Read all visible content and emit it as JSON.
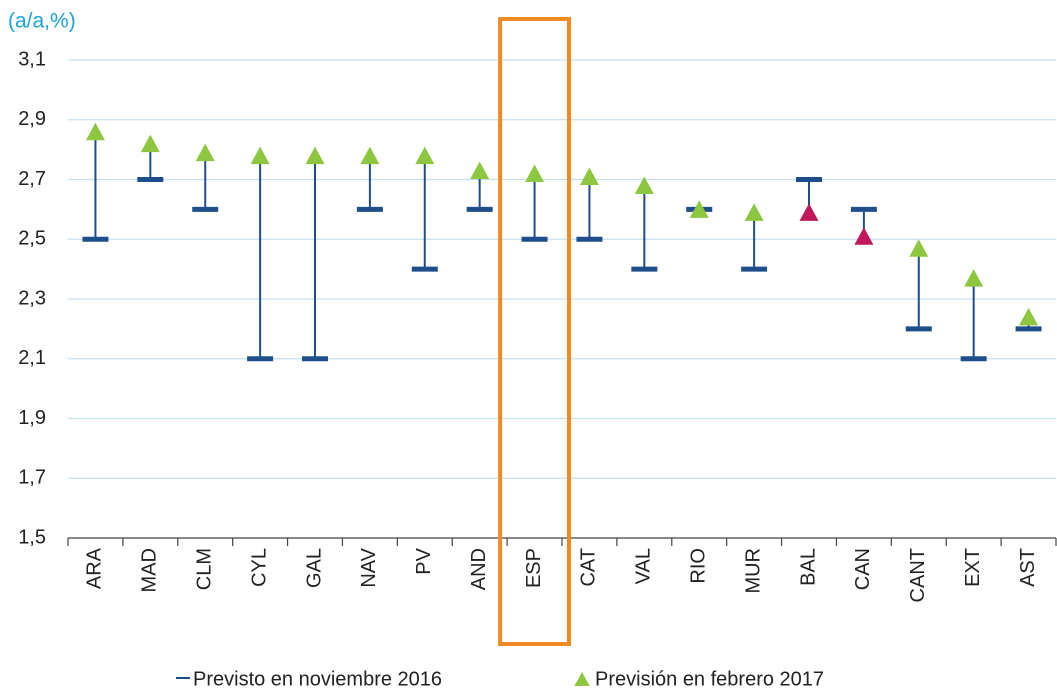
{
  "chart_data": {
    "type": "dumbbell",
    "y_axis_label": "(a/a,%)",
    "categories": [
      "ARA",
      "MAD",
      "CLM",
      "CYL",
      "GAL",
      "NAV",
      "PV",
      "AND",
      "ESP",
      "CAT",
      "VAL",
      "RIO",
      "MUR",
      "BAL",
      "CAN",
      "CANT",
      "EXT",
      "AST"
    ],
    "series": [
      {
        "name": "Previsto en noviembre 2016",
        "color": "#1f4e8c",
        "values": [
          2.5,
          2.7,
          2.6,
          2.1,
          2.1,
          2.6,
          2.4,
          2.6,
          2.5,
          2.5,
          2.4,
          2.6,
          2.4,
          2.7,
          2.6,
          2.2,
          2.1,
          2.2
        ]
      },
      {
        "name": "Previsión en febrero 2017",
        "color": "#8dc63f",
        "colors": [
          "#8dc63f",
          "#8dc63f",
          "#8dc63f",
          "#8dc63f",
          "#8dc63f",
          "#8dc63f",
          "#8dc63f",
          "#8dc63f",
          "#8dc63f",
          "#8dc63f",
          "#8dc63f",
          "#8dc63f",
          "#8dc63f",
          "#c0185a",
          "#c0185a",
          "#8dc63f",
          "#8dc63f",
          "#8dc63f"
        ],
        "values": [
          2.86,
          2.82,
          2.79,
          2.78,
          2.78,
          2.78,
          2.78,
          2.73,
          2.72,
          2.71,
          2.68,
          2.6,
          2.59,
          2.59,
          2.51,
          2.47,
          2.37,
          2.24
        ]
      }
    ],
    "ylim": [
      1.5,
      3.1
    ],
    "yticks": [
      {
        "value": 1.5,
        "label": "1,5"
      },
      {
        "value": 1.7,
        "label": "1,7"
      },
      {
        "value": 1.9,
        "label": "1,9"
      },
      {
        "value": 2.1,
        "label": "2,1"
      },
      {
        "value": 2.3,
        "label": "2,3"
      },
      {
        "value": 2.5,
        "label": "2,5"
      },
      {
        "value": 2.7,
        "label": "2,7"
      },
      {
        "value": 2.9,
        "label": "2,9"
      },
      {
        "value": 3.1,
        "label": "3,1"
      }
    ],
    "grid": true,
    "highlight": "ESP",
    "highlight_color": "#f08a24",
    "legend": "bottom"
  }
}
